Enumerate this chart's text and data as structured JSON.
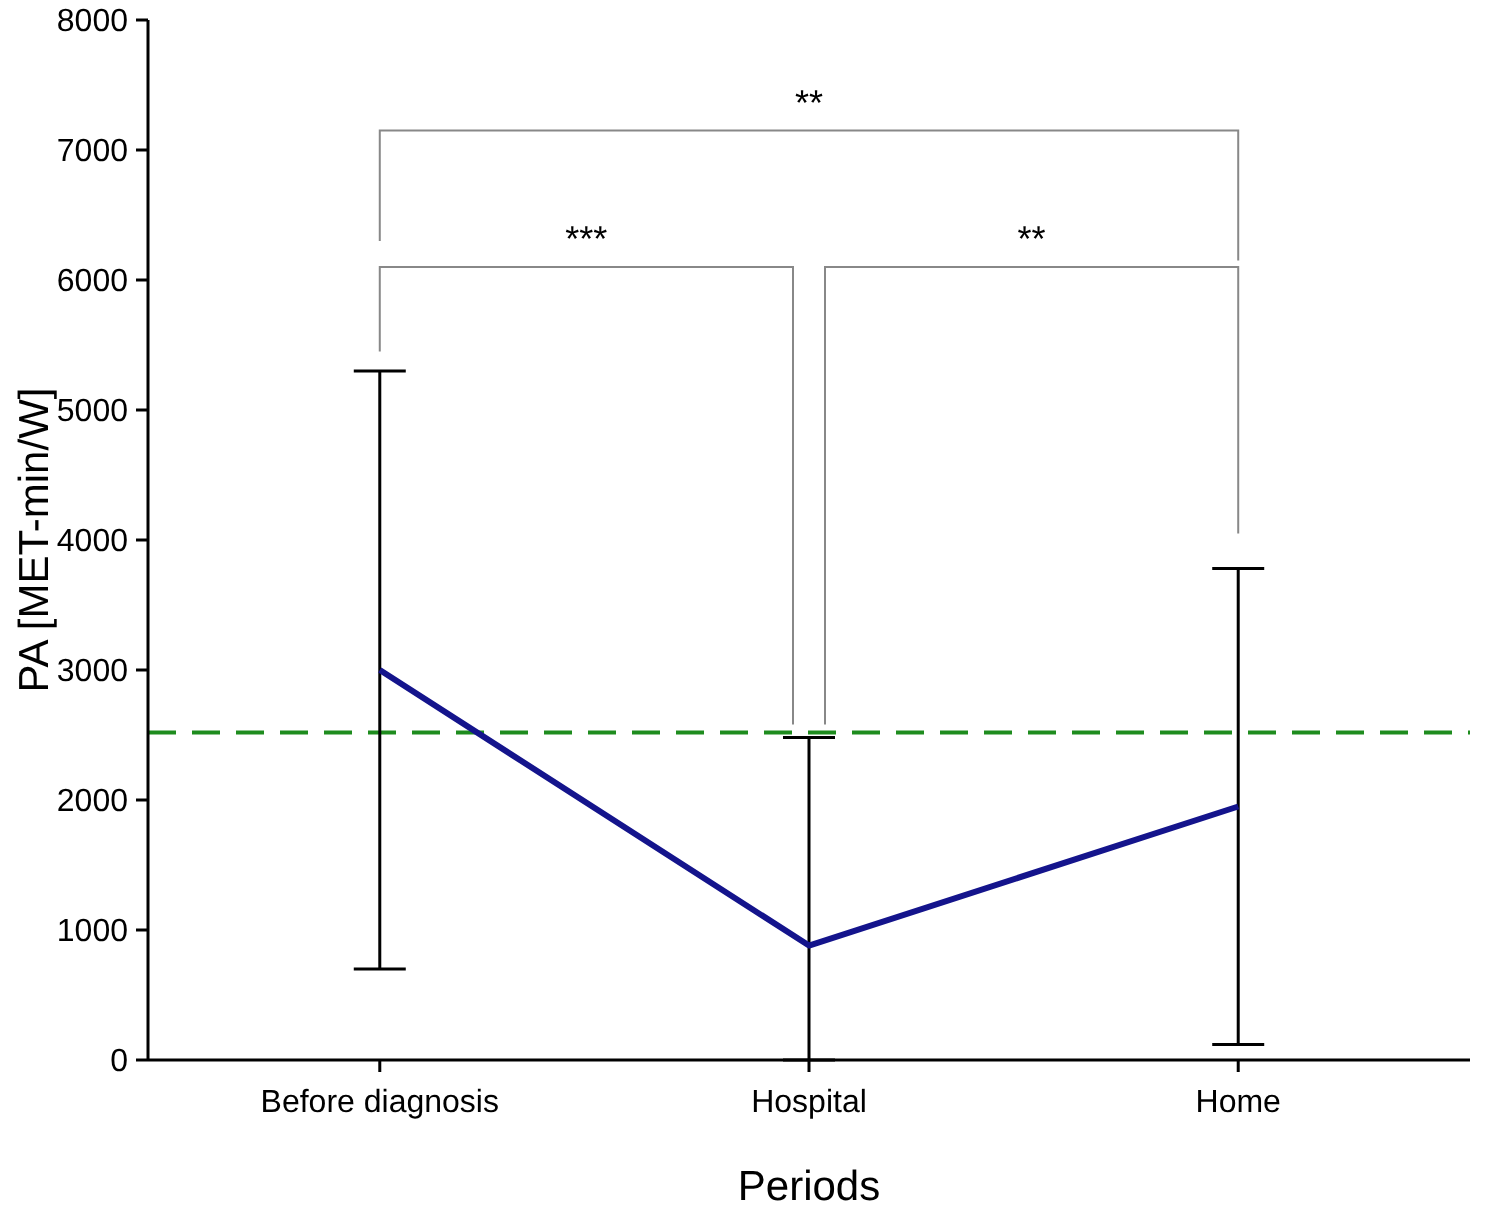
{
  "chart_data": {
    "type": "line",
    "xlabel": "Periods",
    "ylabel": "PA [MET-min/W]",
    "categories": [
      "Before diagnosis",
      "Hospital",
      "Home"
    ],
    "series": [
      {
        "color": "#14148c",
        "values": [
          3000,
          880,
          1950
        ],
        "errors": [
          [
            700,
            5300
          ],
          [
            0,
            2480
          ],
          [
            120,
            3780
          ]
        ]
      }
    ],
    "ylim": [
      0,
      8000
    ],
    "yticks": [
      0,
      1000,
      2000,
      3000,
      4000,
      5000,
      6000,
      7000,
      8000
    ],
    "ref_lines": [
      {
        "axis": "y",
        "value": 2520,
        "color": "#1e8c1e",
        "line_style": "dashed"
      }
    ],
    "annotations": [
      "***",
      "**",
      "**"
    ],
    "grid": false,
    "marker": "none",
    "line_style": "solid"
  }
}
